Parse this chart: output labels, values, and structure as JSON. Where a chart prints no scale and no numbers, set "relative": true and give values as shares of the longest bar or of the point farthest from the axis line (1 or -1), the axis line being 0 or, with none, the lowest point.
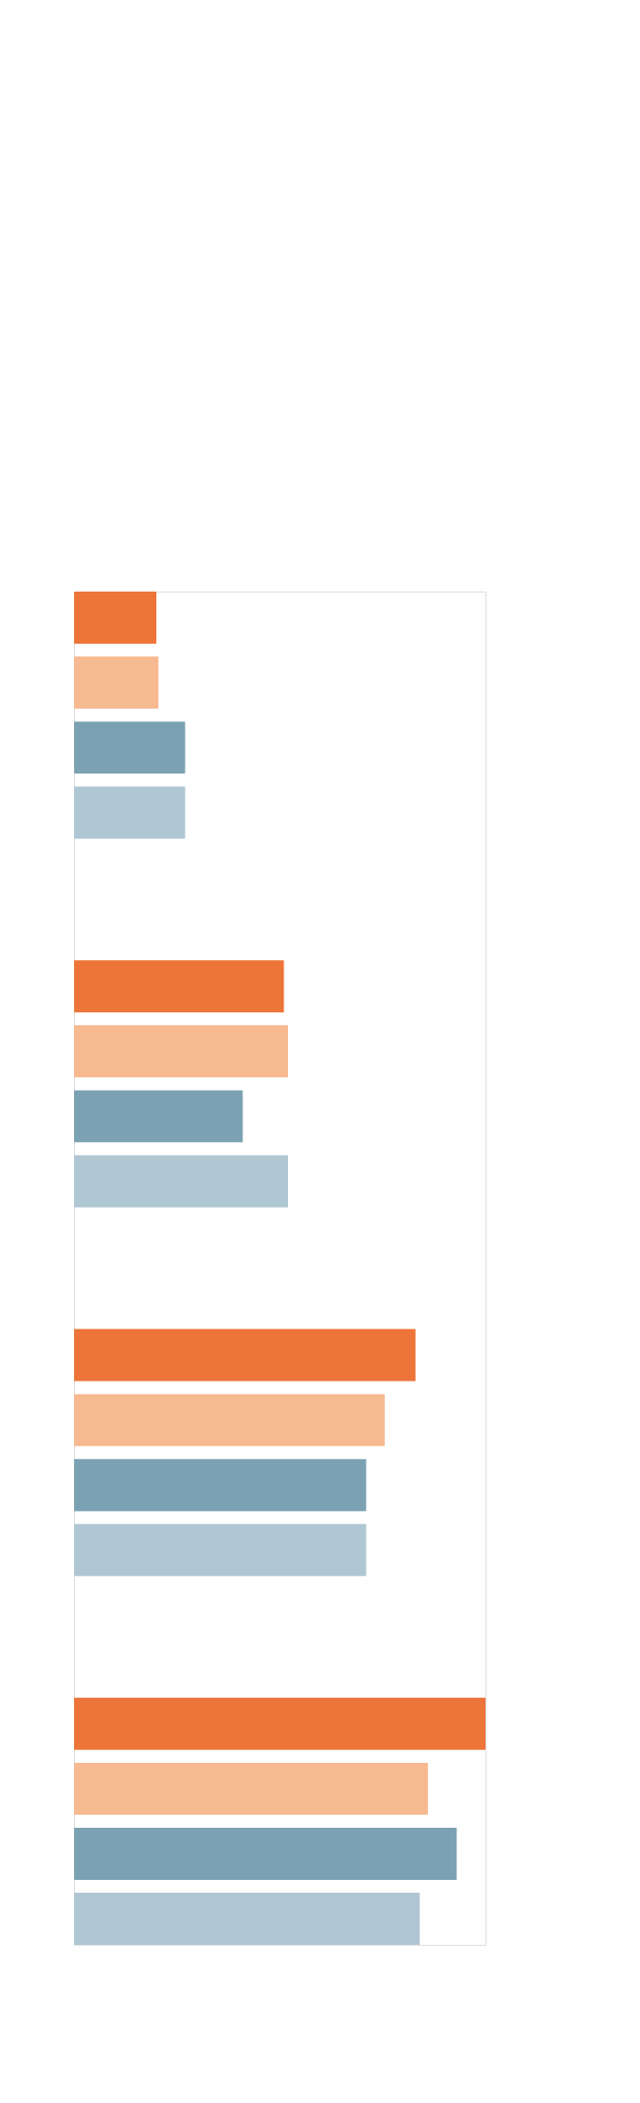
{
  "chart_data": {
    "type": "bar",
    "orientation": "horizontal",
    "relative": true,
    "categories": [
      null,
      null,
      null,
      null
    ],
    "series": [
      {
        "color": "#ed7539",
        "values": [
          0.2,
          0.51,
          0.83,
          1
        ]
      },
      {
        "color": "#f7b990",
        "values": [
          0.205,
          0.52,
          0.755,
          0.86
        ]
      },
      {
        "color": "#7ba2b3",
        "values": [
          0.27,
          0.41,
          0.71,
          0.93
        ]
      },
      {
        "color": "#afc7d3",
        "values": [
          0.27,
          0.52,
          0.71,
          0.84
        ]
      }
    ]
  }
}
